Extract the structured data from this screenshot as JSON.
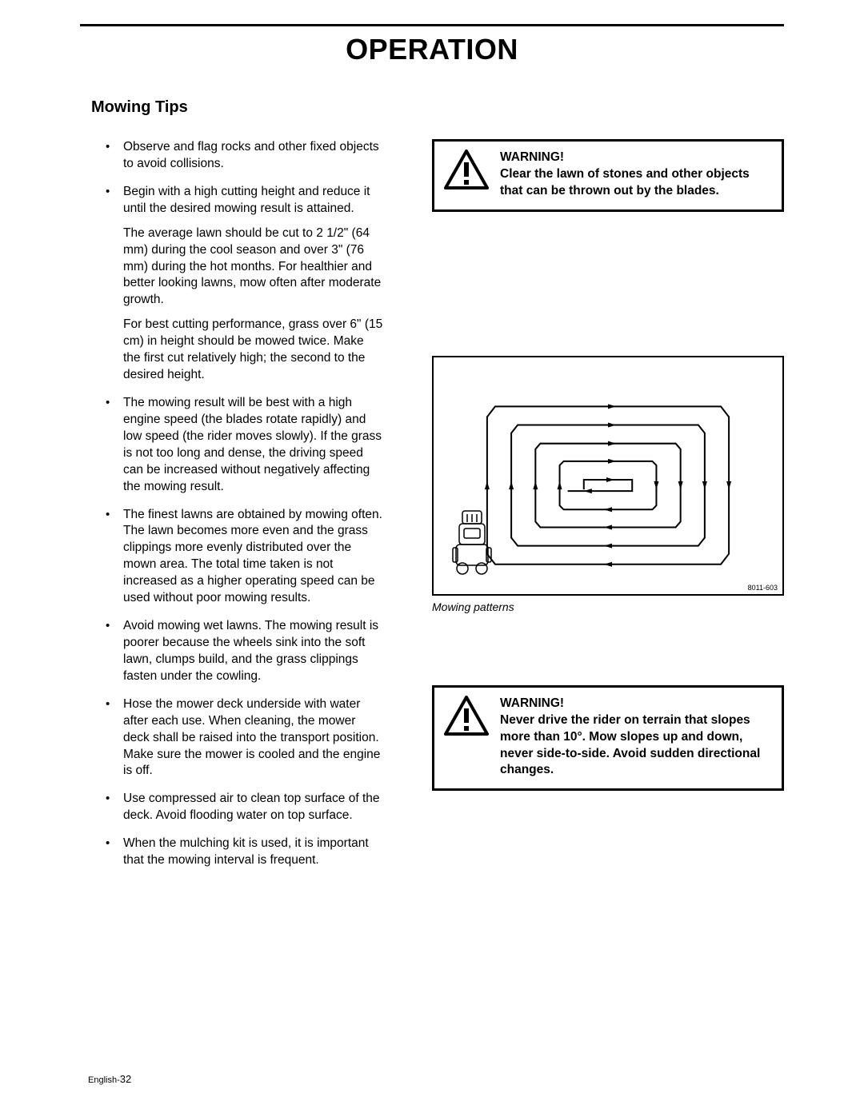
{
  "page": {
    "title": "OPERATION",
    "section_title": "Mowing Tips",
    "footer_lang": "English-",
    "footer_page": "32"
  },
  "tips": {
    "items": [
      {
        "text": "Observe and flag rocks and other fixed objects to avoid collisions.",
        "subs": []
      },
      {
        "text": "Begin with a high cutting height and reduce it until the desired mowing result is attained.",
        "subs": [
          "The average lawn should be cut to 2 1/2\" (64 mm) during the cool season and over 3\" (76 mm) during the hot months. For healthier and better looking lawns, mow often after moderate growth.",
          "For best cutting performance, grass over 6\" (15 cm) in height should be mowed twice. Make the first cut relatively high; the second to the desired height."
        ]
      },
      {
        "text": "The mowing result will be best with a high engine speed (the blades rotate rapidly) and low speed (the rider moves slowly). If the grass is not too long and dense, the driving speed can be increased without negatively affecting the mowing result.",
        "subs": []
      },
      {
        "text": "The finest lawns are obtained by mowing often. The lawn becomes more even and the grass clippings more evenly distributed over the mown area. The total time taken is not increased as a higher operating speed can be used without poor mowing results.",
        "subs": []
      },
      {
        "text": "Avoid mowing wet lawns. The mowing result is poorer because the wheels sink into the soft lawn, clumps build, and the grass clippings fasten under the cowling.",
        "subs": []
      },
      {
        "text": "Hose the mower deck underside with water after each use. When cleaning, the mower deck shall be raised into the transport position. Make sure the mower is cooled and the engine is off.",
        "subs": []
      },
      {
        "text": "Use compressed air to clean top surface of the deck. Avoid flooding water on top surface.",
        "subs": []
      },
      {
        "text": "When the mulching kit is used, it is important that the mowing interval is frequent.",
        "subs": []
      }
    ]
  },
  "warnings": {
    "w1": {
      "heading": "WARNING!",
      "body": "Clear the lawn of stones and other objects that can be thrown out by the blades."
    },
    "w2": {
      "heading": "WARNING!",
      "body": "Never drive the rider on terrain that slopes more than 10°. Mow slopes up and down, never side-to-side. Avoid sudden directional changes."
    }
  },
  "figure": {
    "caption": "Mowing patterns",
    "id": "8011-603",
    "stroke": "#000000",
    "bg": "#ffffff",
    "line_width": 2
  },
  "colors": {
    "text": "#000000",
    "bg": "#ffffff",
    "border": "#000000"
  }
}
